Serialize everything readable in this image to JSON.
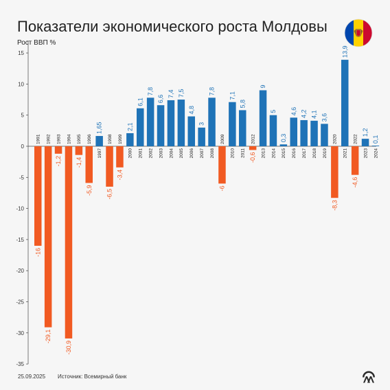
{
  "title": "Показатели экономического роста Молдовы",
  "ylabel": "Рост ВВП %",
  "footer": {
    "date": "25.09.2025",
    "source": "Источник: Всемирный банк"
  },
  "colors": {
    "positive": "#1f73b7",
    "negative": "#f15a22"
  },
  "icons": {
    "flag": "moldova-flag-icon",
    "logo": "aa-logo-icon"
  },
  "chart_data": {
    "type": "bar",
    "ylabel": "Рост ВВП %",
    "ylim": [
      -35,
      17
    ],
    "yticks": [
      -35,
      -30,
      -25,
      -20,
      -15,
      -10,
      -5,
      0,
      5,
      10,
      15
    ],
    "grid": false,
    "categories": [
      "1991",
      "1992",
      "1993",
      "1994",
      "1995",
      "1996",
      "1997",
      "1998",
      "1999",
      "2000",
      "2001",
      "2002",
      "2003",
      "2004",
      "2005",
      "2006",
      "2007",
      "2008",
      "2009",
      "2010",
      "2011",
      "2012",
      "2013",
      "2014",
      "2015",
      "2016",
      "2017",
      "2018",
      "2019",
      "2020",
      "2021",
      "2022",
      "2023",
      "2024"
    ],
    "values": [
      -16,
      -29.1,
      -1.2,
      -30.9,
      -1.4,
      -5.9,
      1.65,
      -6.5,
      -3.4,
      2.1,
      6.1,
      7.8,
      6.6,
      7.4,
      7.5,
      4.8,
      3,
      7.8,
      -6,
      7.1,
      5.8,
      -0.6,
      9,
      5,
      0.3,
      4.6,
      4.2,
      4.1,
      3.6,
      -8.3,
      13.9,
      -4.6,
      1.2,
      0.1
    ],
    "value_labels": [
      "-16",
      "-29,1",
      "-1,2",
      "-30,9",
      "-1,4",
      "-5,9",
      "1,65",
      "-6,5",
      "-3,4",
      "2,1",
      "6,1",
      "7,8",
      "6,6",
      "7,4",
      "7,5",
      "4,8",
      "3",
      "7,8",
      "-6",
      "7,1",
      "5,8",
      "-0,6",
      "9",
      "5",
      "0,3",
      "4,6",
      "4,2",
      "4,1",
      "3,6",
      "-8,3",
      "13,9",
      "-4,6",
      "1,2",
      "0,1"
    ],
    "tick_labels": [
      "-35",
      "-30",
      "-25",
      "-20",
      "-15",
      "-10",
      "-5",
      "0",
      "5",
      "10",
      "15"
    ]
  }
}
